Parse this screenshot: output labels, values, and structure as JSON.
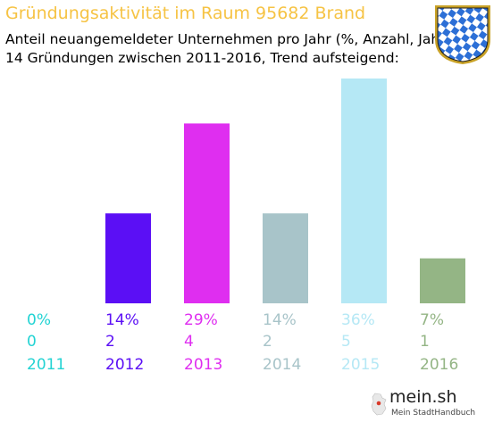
{
  "colors": {
    "title": "#f6c344",
    "bars": [
      "#22d3d3",
      "#5b0ff5",
      "#df2ef0",
      "#a8c4c9",
      "#b5e8f5",
      "#94b585"
    ]
  },
  "logo": {
    "text": "mein.sh",
    "subtext": "Mein StadtHandbuch"
  },
  "chart_data": {
    "type": "bar",
    "title": "Gründungsaktivität im Raum 95682 Brand",
    "subtitle": [
      "Anteil neuangemeldeter Unternehmen pro Jahr (%, Anzahl, Jahr)",
      "14 Gründungen zwischen 2011-2016, Trend aufsteigend:"
    ],
    "categories": [
      "2011",
      "2012",
      "2013",
      "2014",
      "2015",
      "2016"
    ],
    "values": [
      0,
      2,
      4,
      2,
      5,
      1
    ],
    "percent_labels": [
      "0%",
      "14%",
      "29%",
      "14%",
      "36%",
      "7%"
    ],
    "count_labels": [
      "0",
      "2",
      "4",
      "2",
      "5",
      "1"
    ],
    "ylim": [
      0,
      5
    ],
    "grid": false,
    "legend": "none"
  }
}
